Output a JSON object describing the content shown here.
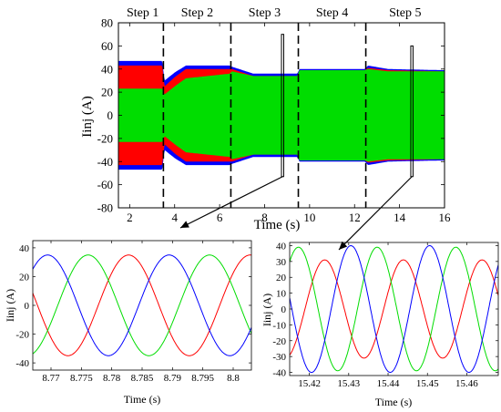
{
  "colors": {
    "phase_a": "#ff0000",
    "phase_b": "#00dd00",
    "phase_c": "#0000ff",
    "frame": "#000000"
  },
  "chart_data": [
    {
      "type": "line",
      "id": "main",
      "xlabel": "Time (s)",
      "ylabel": "Iinj (A)",
      "xlim": [
        1.5,
        16
      ],
      "ylim": [
        -80,
        80
      ],
      "xticks": [
        2,
        4,
        6,
        8,
        10,
        12,
        14,
        16
      ],
      "yticks": [
        -80,
        -60,
        -40,
        -20,
        0,
        20,
        40,
        60,
        80
      ],
      "grid": false,
      "steps": {
        "labels": [
          "Step 1",
          "Step 2",
          "Step 3",
          "Step 4",
          "Step 5"
        ],
        "boundaries": [
          3.5,
          6.5,
          9.5,
          12.5
        ]
      },
      "envelope": {
        "x": [
          1.5,
          3.45,
          3.55,
          4.0,
          4.5,
          6.45,
          6.55,
          7.5,
          9.45,
          9.55,
          12.45,
          12.6,
          13.5,
          16
        ],
        "amp_c": [
          47,
          47,
          30,
          37,
          43,
          43,
          42,
          36,
          36,
          40,
          40,
          43,
          40,
          39
        ],
        "amp_a": [
          43,
          43,
          25,
          33,
          40,
          40,
          40,
          34,
          34,
          39,
          39,
          41,
          39,
          38
        ],
        "amp_b": [
          23,
          23,
          18,
          25,
          32,
          36,
          38,
          34,
          34,
          39,
          39,
          40,
          38,
          38
        ]
      },
      "zoom_boxes": [
        {
          "x": [
            8.75,
            8.85
          ],
          "y": [
            -53,
            70
          ]
        },
        {
          "x": [
            14.5,
            14.6
          ],
          "y": [
            -53,
            60
          ]
        }
      ]
    },
    {
      "type": "line",
      "id": "zoom-left",
      "xlabel": "Time (s)",
      "ylabel": "Iinj (A)",
      "xlim": [
        8.767,
        8.803
      ],
      "ylim": [
        -45,
        45
      ],
      "xticks": [
        8.77,
        8.775,
        8.78,
        8.785,
        8.79,
        8.795,
        8.8
      ],
      "yticks": [
        -40,
        -20,
        0,
        20,
        40
      ],
      "series": [
        {
          "phase": "a",
          "amplitude": 35,
          "frequency": 50,
          "phase_deg": 40
        },
        {
          "phase": "b",
          "amplitude": 35,
          "frequency": 50,
          "phase_deg": 160
        },
        {
          "phase": "c",
          "amplitude": 35,
          "frequency": 50,
          "phase_deg": 280
        }
      ]
    },
    {
      "type": "line",
      "id": "zoom-right",
      "xlabel": "Time (s)",
      "ylabel": "Iinj (A)",
      "xlim": [
        15.415,
        15.468
      ],
      "ylim": [
        -42,
        42
      ],
      "xticks": [
        15.42,
        15.43,
        15.44,
        15.45,
        15.46
      ],
      "yticks": [
        -40,
        -30,
        -20,
        -10,
        0,
        10,
        20,
        30,
        40
      ],
      "series": [
        {
          "phase": "a",
          "amplitude": 31,
          "frequency": 50,
          "phase_deg": 20
        },
        {
          "phase": "b",
          "amplitude": 39,
          "frequency": 50,
          "phase_deg": 140
        },
        {
          "phase": "c",
          "amplitude": 40,
          "frequency": 50,
          "phase_deg": 260
        }
      ]
    }
  ]
}
